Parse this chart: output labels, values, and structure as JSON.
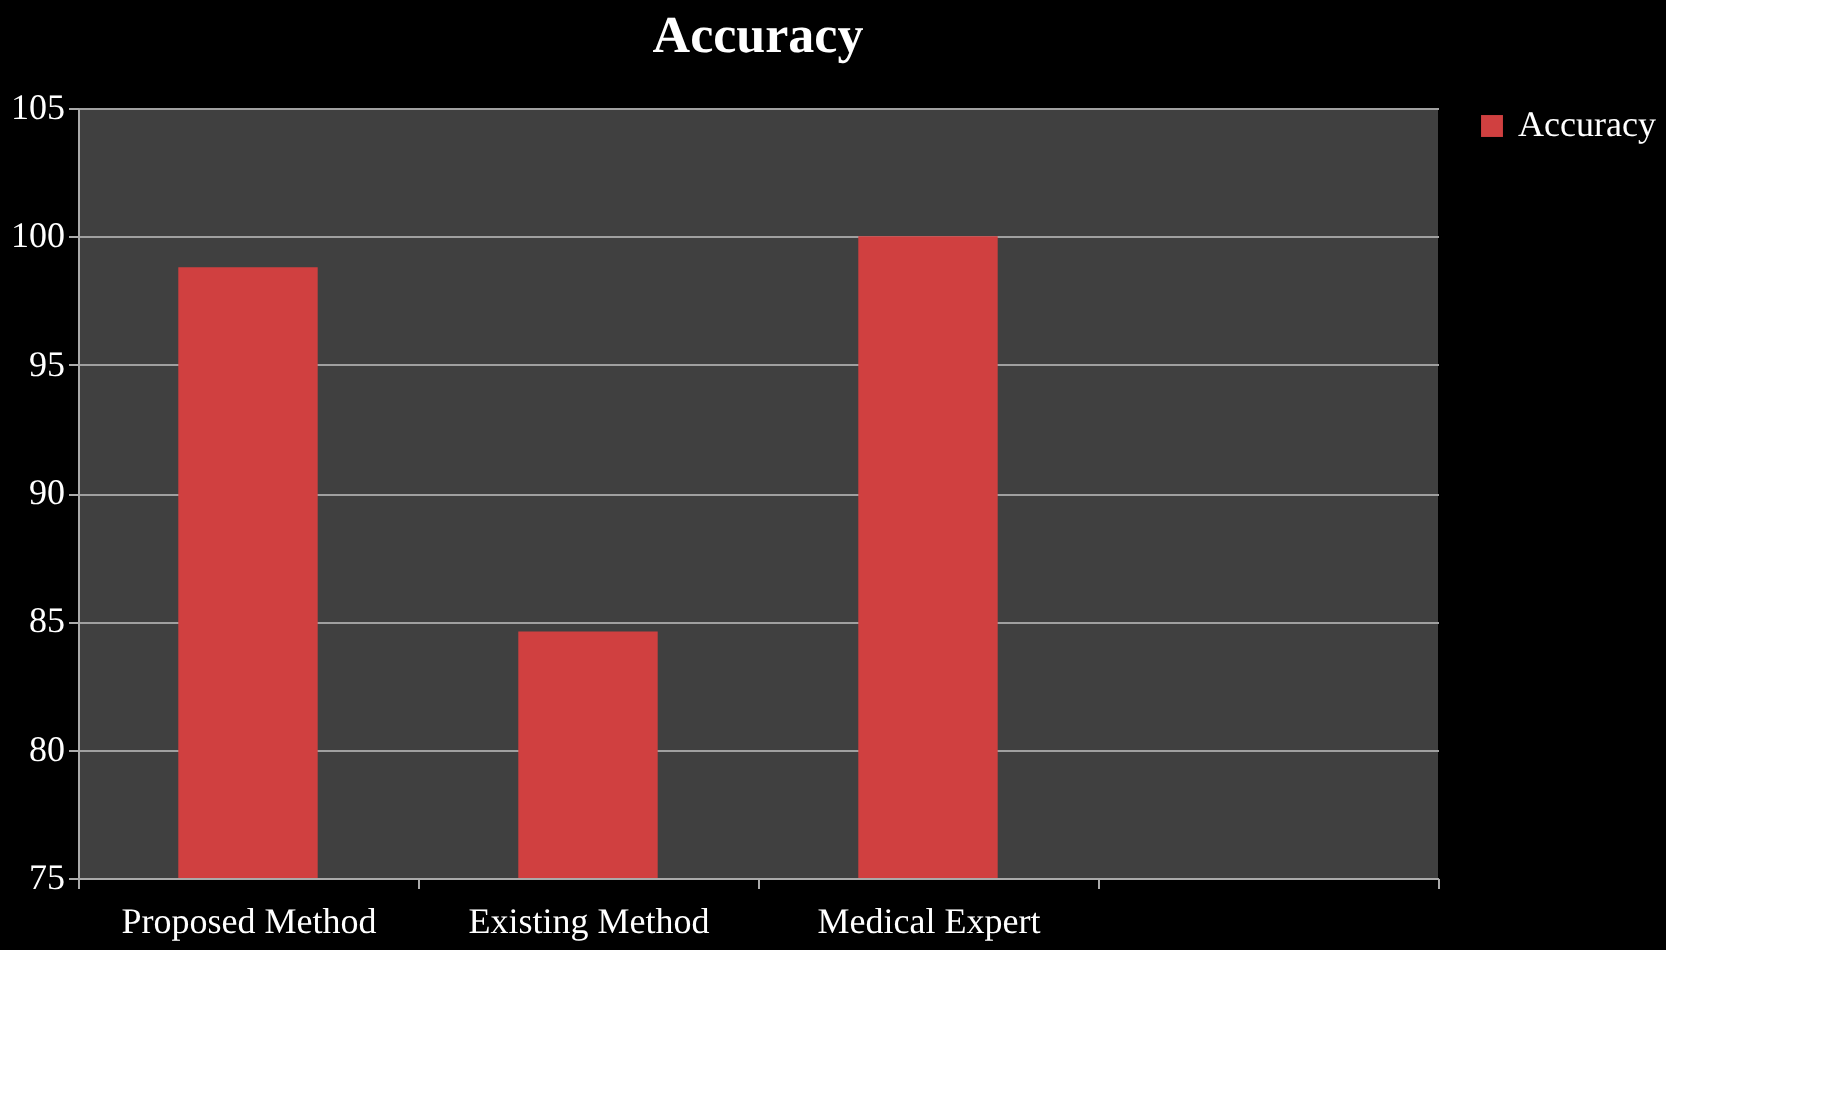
{
  "chart_data": {
    "type": "bar",
    "title": "Accuracy",
    "categories": [
      "Proposed Method",
      "Existing Method",
      "Medical Expert",
      null
    ],
    "series": [
      {
        "name": "Accuracy",
        "color": "#d04040",
        "values": [
          98.8,
          84.6,
          100,
          null
        ]
      }
    ],
    "ylim": [
      75,
      105
    ],
    "yticks": [
      75,
      80,
      85,
      90,
      95,
      100,
      105
    ],
    "grid": "y",
    "legend": "right"
  }
}
